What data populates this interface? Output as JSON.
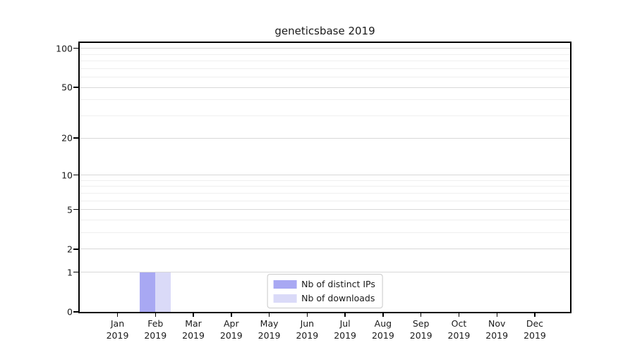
{
  "chart_data": {
    "type": "bar",
    "title": "geneticsbase 2019",
    "x_months": [
      "Jan",
      "Feb",
      "Mar",
      "Apr",
      "May",
      "Jun",
      "Jul",
      "Aug",
      "Sep",
      "Oct",
      "Nov",
      "Dec"
    ],
    "x_year": "2019",
    "series": [
      {
        "name": "Nb of distinct IPs",
        "color": "#a8a8f3",
        "values": [
          0,
          1,
          0,
          0,
          0,
          0,
          0,
          0,
          0,
          0,
          0,
          0
        ]
      },
      {
        "name": "Nb of downloads",
        "color": "#dadaf8",
        "values": [
          0,
          1,
          0,
          0,
          0,
          0,
          0,
          0,
          0,
          0,
          0,
          0
        ]
      }
    ],
    "yscale": "log1p",
    "y_major_ticks": [
      0,
      1,
      2,
      5,
      10,
      20,
      50,
      100
    ],
    "y_minor_gridlines": [
      3,
      4,
      6,
      7,
      8,
      9,
      30,
      40,
      60,
      70,
      80,
      90
    ],
    "ylim": [
      0,
      110
    ],
    "xlabel": "",
    "ylabel": "",
    "grid": "horizontal",
    "legend_position": "lower center",
    "colors": {
      "major_grid": "#d8d8d8",
      "minor_grid": "#efefef",
      "spine": "#000000",
      "text": "#1a1a1a"
    }
  }
}
